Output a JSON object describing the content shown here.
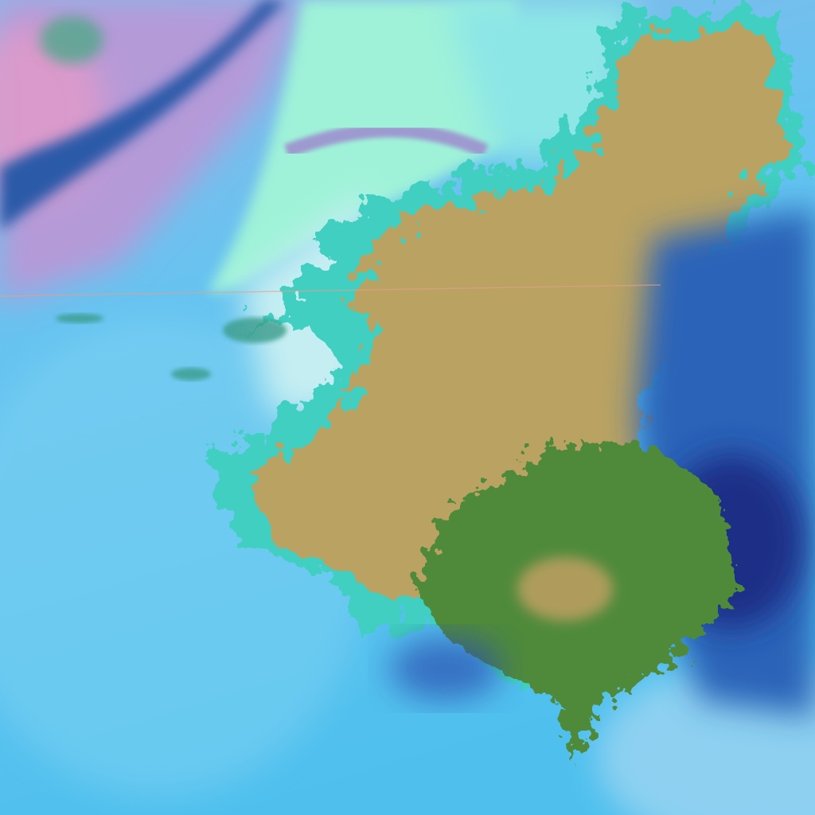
{
  "image": {
    "kind": "false-color satellite imagery",
    "colors": {
      "ocean_cloud": "#5cc4ee",
      "haze_pale": "#8fd6f2",
      "pink_haze": "#d89ad0",
      "dark_band": "#2a5aa8",
      "mint_cloud": "#9ff2d8",
      "land_tan": "#b9a262",
      "land_green": "#4f8a3a",
      "dark_storm": "#1e3f95",
      "cyan_edge": "#3fcfc0"
    }
  }
}
